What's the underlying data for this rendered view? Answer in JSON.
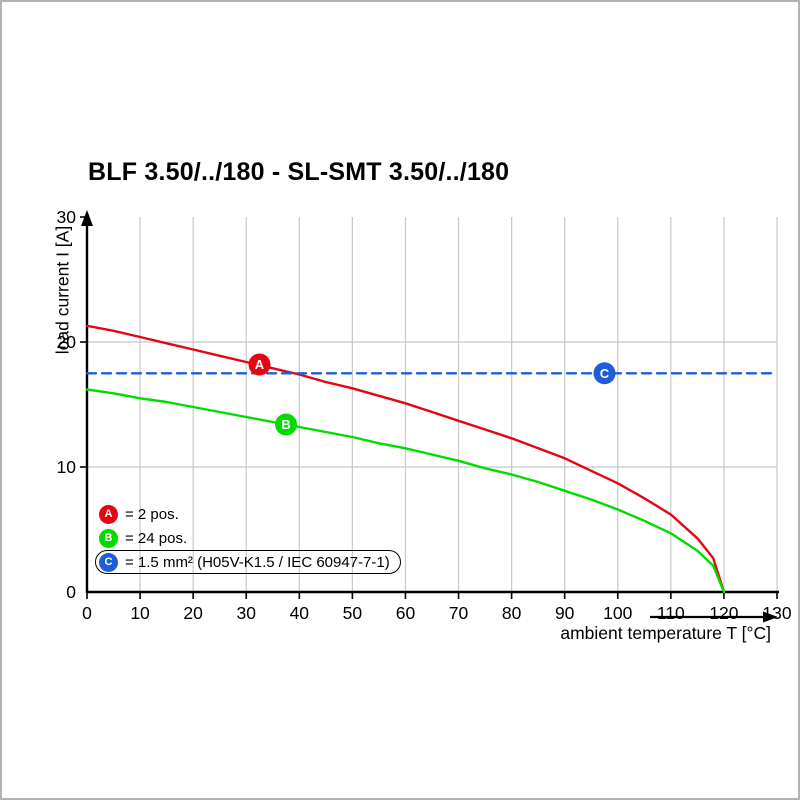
{
  "title": "BLF 3.50/../180 - SL-SMT 3.50/../180",
  "axes": {
    "x_label": "ambient temperature T [°C]",
    "y_label": "load current I [A]",
    "x_ticks": [
      0,
      10,
      20,
      30,
      40,
      50,
      60,
      70,
      80,
      90,
      100,
      110,
      120,
      130
    ],
    "y_ticks": [
      0,
      10,
      20,
      30
    ]
  },
  "colors": {
    "red": "#e30613",
    "green": "#00dc00",
    "blue": "#1e5ed6",
    "grid": "#c8c8c8",
    "axis": "#000000"
  },
  "legend": [
    {
      "letter": "A",
      "color": "#e30613",
      "label": "= 2 pos.",
      "boxed": false
    },
    {
      "letter": "B",
      "color": "#00dc00",
      "label": "= 24 pos.",
      "boxed": false
    },
    {
      "letter": "C",
      "color": "#1e5ed6",
      "label": "= 1.5 mm² (H05V-K1.5 / IEC 60947-7-1)",
      "boxed": true
    }
  ],
  "chart_data": {
    "type": "line",
    "title": "BLF 3.50/../180 - SL-SMT 3.50/../180",
    "xlabel": "ambient temperature T [°C]",
    "ylabel": "load current I [A]",
    "xlim": [
      0,
      130
    ],
    "ylim": [
      0,
      30
    ],
    "grid": "on",
    "legend_position": "bottom-left-inside",
    "series": [
      {
        "name": "A = 2 pos.",
        "color": "#e30613",
        "style": "solid",
        "x": [
          0,
          5,
          10,
          15,
          20,
          25,
          30,
          35,
          40,
          45,
          50,
          55,
          60,
          65,
          70,
          75,
          80,
          85,
          90,
          95,
          100,
          105,
          110,
          115,
          118,
          120
        ],
        "y": [
          21.3,
          20.9,
          20.4,
          19.9,
          19.4,
          18.9,
          18.4,
          17.9,
          17.4,
          16.8,
          16.3,
          15.7,
          15.1,
          14.4,
          13.7,
          13.0,
          12.3,
          11.5,
          10.7,
          9.7,
          8.7,
          7.5,
          6.2,
          4.3,
          2.7,
          0
        ],
        "marker": {
          "letter": "A",
          "x": 32.5,
          "y": 18.2
        }
      },
      {
        "name": "B = 24 pos.",
        "color": "#00dc00",
        "style": "solid",
        "x": [
          0,
          5,
          10,
          15,
          20,
          25,
          30,
          35,
          40,
          45,
          50,
          55,
          60,
          65,
          70,
          75,
          80,
          85,
          90,
          95,
          100,
          105,
          110,
          115,
          118,
          120
        ],
        "y": [
          16.2,
          15.9,
          15.5,
          15.2,
          14.8,
          14.4,
          14.0,
          13.6,
          13.2,
          12.8,
          12.4,
          11.9,
          11.5,
          11.0,
          10.5,
          9.9,
          9.4,
          8.8,
          8.1,
          7.4,
          6.6,
          5.7,
          4.7,
          3.3,
          2.1,
          0
        ],
        "marker": {
          "letter": "B",
          "x": 37.5,
          "y": 13.4
        }
      },
      {
        "name": "C = 1.5 mm² (H05V-K1.5 / IEC 60947-7-1)",
        "color": "#1e5ed6",
        "style": "dashed",
        "x": [
          0,
          130
        ],
        "y": [
          17.5,
          17.5
        ],
        "marker": {
          "letter": "C",
          "x": 97.5,
          "y": 17.5
        }
      }
    ]
  }
}
